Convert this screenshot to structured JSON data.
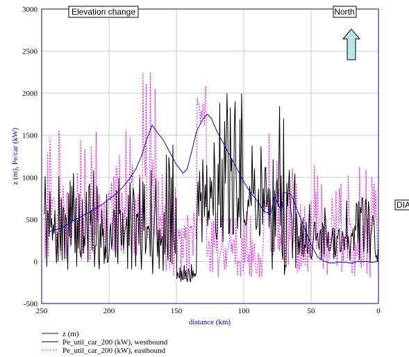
{
  "chart_data": {
    "type": "line",
    "xlabel": "distance (km)",
    "ylabel": "z (m), Pe/car (kW)",
    "xlim": [
      250,
      0
    ],
    "ylim": [
      -500,
      3000
    ],
    "x_ticks": [
      250,
      200,
      150,
      100,
      50,
      0
    ],
    "y_ticks": [
      3000,
      2500,
      2000,
      1500,
      1000,
      500,
      0,
      -500
    ],
    "grid": true,
    "annotations": {
      "elevation": "Elevation change",
      "north": "North",
      "side": "DIA"
    },
    "legend_position": "bottom",
    "series": [
      {
        "name": "z  (m)",
        "color": "#0000dd",
        "style": "solid",
        "x": [
          245,
          235,
          225,
          215,
          205,
          195,
          190,
          185,
          180,
          176,
          172,
          168,
          165,
          160,
          155,
          150,
          145,
          142,
          138,
          135,
          130,
          127,
          124,
          120,
          115,
          110,
          105,
          100,
          95,
          90,
          85,
          80,
          77,
          75,
          72,
          70,
          65,
          60,
          55,
          50,
          45,
          40,
          35,
          30,
          25,
          20,
          15,
          10,
          5,
          0
        ],
        "y": [
          350,
          400,
          500,
          580,
          680,
          800,
          880,
          980,
          1100,
          1250,
          1450,
          1620,
          1550,
          1450,
          1300,
          1150,
          1050,
          1100,
          1350,
          1550,
          1700,
          1750,
          1700,
          1550,
          1400,
          1250,
          1100,
          950,
          820,
          720,
          600,
          560,
          780,
          700,
          600,
          820,
          800,
          600,
          400,
          200,
          50,
          0,
          -20,
          -10,
          -10,
          -20,
          0,
          0,
          -10,
          0
        ]
      },
      {
        "name": "Pe_util_car_200   (kW), westbound",
        "color": "#000000",
        "style": "solid"
      },
      {
        "name": "Pe_util_car_200   (kW), eastbound",
        "color": "#ee00ee",
        "style": "dotted"
      }
    ]
  }
}
